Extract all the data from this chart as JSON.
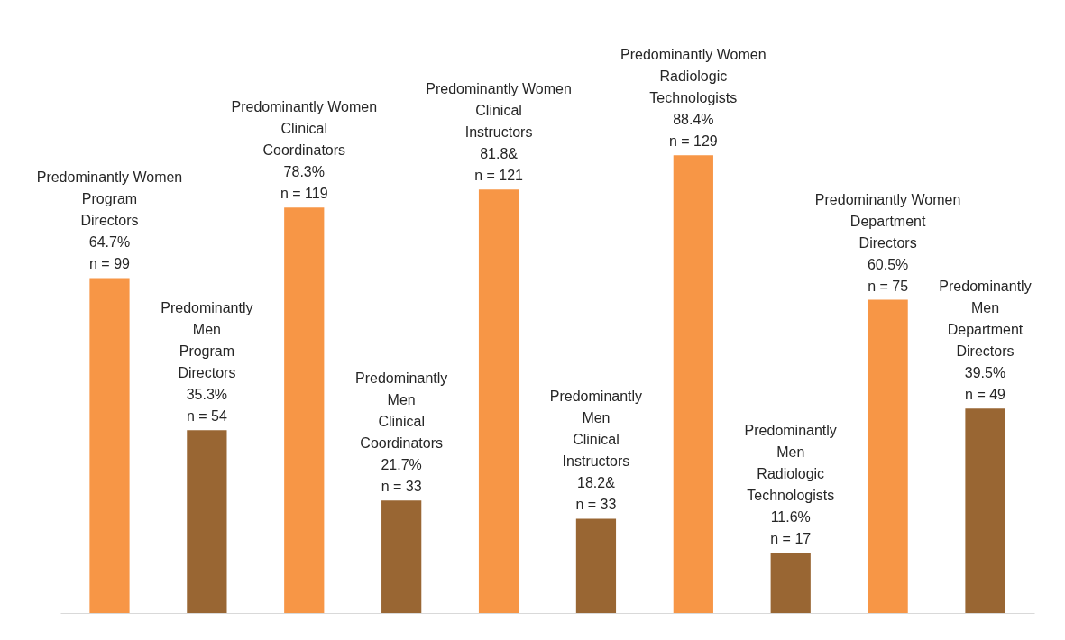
{
  "chart_data": {
    "type": "bar",
    "categories": [
      null,
      null,
      null,
      null,
      null,
      null,
      null,
      null,
      null,
      null
    ],
    "values": [
      64.7,
      35.3,
      78.3,
      21.7,
      81.8,
      18.2,
      88.4,
      11.6,
      60.5,
      39.5
    ],
    "colors": [
      "#f79646",
      "#996633",
      "#f79646",
      "#996633",
      "#f79646",
      "#996633",
      "#f79646",
      "#996633",
      "#f79646",
      "#996633"
    ],
    "value_labels": [
      "Predominantly Women\nProgram\nDirectors\n64.7%\nn = 99",
      "Predominantly\nMen\nProgram\nDirectors\n35.3%\nn = 54",
      "Predominantly Women\nClinical\nCoordinators\n78.3%\nn = 119",
      "Predominantly\nMen\nClinical\nCoordinators\n21.7%\nn = 33",
      "Predominantly Women\nClinical\nInstructors\n81.8&\nn = 121",
      "Predominantly\nMen\nClinical\nInstructors\n18.2&\nn = 33",
      "Predominantly Women\nRadiologic\nTechnologists\n88.4%\nn = 129",
      "Predominantly\nMen\nRadiologic\nTechnologists\n11.6%\nn = 17",
      "Predominantly Women\nDepartment\nDirectors\n60.5%\nn = 75",
      "Predominantly\nMen\nDepartment\nDirectors\n39.5%\nn = 49"
    ]
  }
}
